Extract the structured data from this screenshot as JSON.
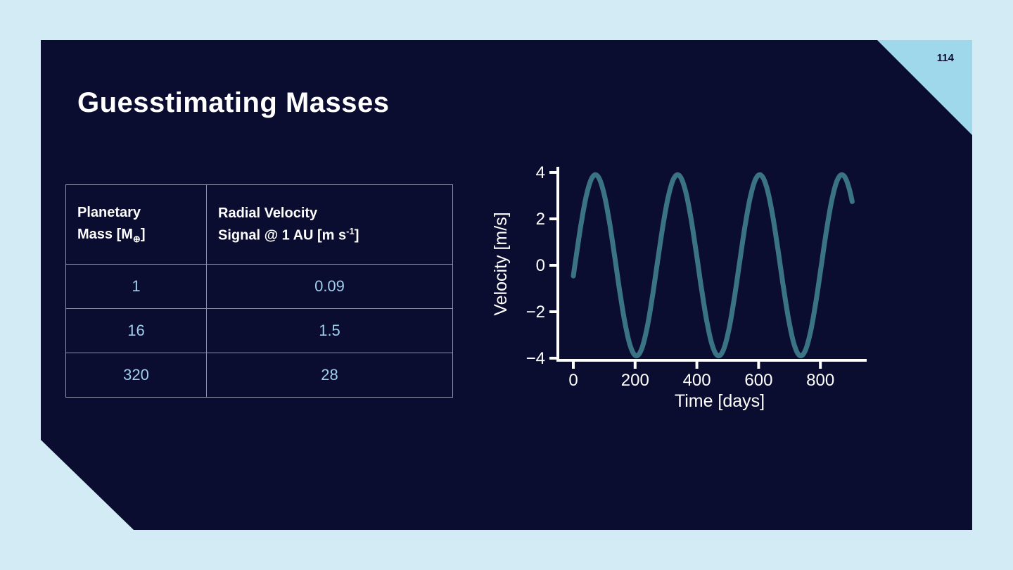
{
  "page_number": "114",
  "slide": {
    "title": "Guesstimating Masses"
  },
  "table": {
    "headers": {
      "col1": {
        "line1": "Planetary",
        "line2_pre": "Mass [M",
        "line2_sub": "⊕",
        "line2_post": "]"
      },
      "col2": {
        "line1": "Radial Velocity",
        "line2_pre": "Signal @ 1 AU [m s",
        "line2_sup": "-1",
        "line2_post": "]"
      }
    },
    "rows": [
      {
        "mass": "1",
        "signal": "0.09"
      },
      {
        "mass": "16",
        "signal": "1.5"
      },
      {
        "mass": "320",
        "signal": "28"
      }
    ]
  },
  "chart_data": {
    "type": "line",
    "title": "",
    "xlabel": "Time [days]",
    "ylabel": "Velocity [m/s]",
    "x_ticks": [
      0,
      200,
      400,
      600,
      800
    ],
    "y_ticks": [
      4,
      2,
      0,
      -2,
      -4
    ],
    "xlim": [
      0,
      950
    ],
    "ylim": [
      -4.4,
      4.3
    ],
    "grid": false,
    "legend": "none",
    "series": [
      {
        "name": "radial-velocity-signal",
        "model": "sine",
        "amplitude": 3.9,
        "period_days": 266,
        "phase_days": 5,
        "t_start": 0,
        "t_end": 905,
        "color": "#3a7383"
      }
    ]
  },
  "colors": {
    "page_bg": "#d3ebf5",
    "slide_bg": "#0a0c30",
    "corner_accent": "#9fd8ea",
    "curve": "#3a7383",
    "table_value_text": "#9fcfec",
    "axis": "#ffffff"
  }
}
